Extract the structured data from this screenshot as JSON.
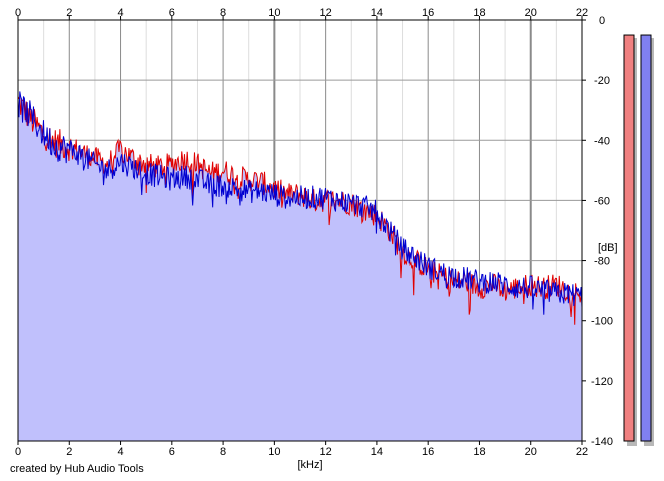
{
  "chart_data": {
    "type": "area",
    "xlabel": "[kHz]",
    "ylabel": "[dB]",
    "xlim": [
      0,
      22
    ],
    "ylim": [
      -140,
      0
    ],
    "x_ticks": [
      0,
      2,
      4,
      6,
      8,
      10,
      12,
      14,
      16,
      18,
      20,
      22
    ],
    "y_ticks": [
      0,
      -20,
      -40,
      -60,
      -80,
      -100,
      -120,
      -140
    ],
    "grid": true,
    "series": [
      {
        "color": "#e00000",
        "x": [
          0.0,
          0.5,
          1.0,
          1.5,
          2.0,
          2.5,
          3.0,
          3.5,
          4.0,
          4.5,
          5.0,
          5.5,
          6.0,
          6.5,
          7.0,
          7.5,
          8.0,
          8.5,
          9.0,
          9.5,
          10.0,
          10.5,
          11.0,
          11.5,
          12.0,
          12.5,
          13.0,
          13.5,
          14.0,
          14.5,
          15.0,
          15.5,
          16.0,
          16.5,
          17.0,
          17.5,
          18.0,
          18.5,
          19.0,
          19.5,
          20.0,
          20.5,
          21.0,
          21.5,
          22.0
        ],
        "values": [
          -27,
          -33,
          -38,
          -41,
          -42,
          -44,
          -46,
          -48,
          -43,
          -46,
          -48,
          -49,
          -48,
          -46,
          -48,
          -51,
          -50,
          -52,
          -53,
          -54,
          -56,
          -58,
          -58,
          -60,
          -60,
          -60,
          -61,
          -63,
          -65,
          -70,
          -77,
          -80,
          -83,
          -85,
          -87,
          -87,
          -89,
          -88,
          -90,
          -89,
          -88,
          -89,
          -88,
          -90,
          -91
        ]
      },
      {
        "color": "#0000d0",
        "x": [
          0.0,
          0.5,
          1.0,
          1.5,
          2.0,
          2.5,
          3.0,
          3.5,
          4.0,
          4.5,
          5.0,
          5.5,
          6.0,
          6.5,
          7.0,
          7.5,
          8.0,
          8.5,
          9.0,
          9.5,
          10.0,
          10.5,
          11.0,
          11.5,
          12.0,
          12.5,
          13.0,
          13.5,
          14.0,
          14.5,
          15.0,
          15.5,
          16.0,
          16.5,
          17.0,
          17.5,
          18.0,
          18.5,
          19.0,
          19.5,
          20.0,
          20.5,
          21.0,
          21.5,
          22.0
        ],
        "values": [
          -28,
          -32,
          -38,
          -42,
          -43,
          -45,
          -48,
          -50,
          -47,
          -49,
          -51,
          -52,
          -53,
          -52,
          -53,
          -55,
          -55,
          -56,
          -57,
          -57,
          -58,
          -59,
          -59,
          -59,
          -59,
          -60,
          -61,
          -62,
          -64,
          -70,
          -76,
          -79,
          -82,
          -84,
          -85,
          -86,
          -87,
          -87,
          -88,
          -89,
          -89,
          -90,
          -91,
          -91,
          -92
        ]
      }
    ],
    "fill_color": "#c0c0fc",
    "meters": [
      {
        "color": "#f08080",
        "value_db": -5
      },
      {
        "color": "#8080f0",
        "value_db": -5
      }
    ]
  },
  "footer": {
    "credit": "created by Hub Audio Tools"
  }
}
